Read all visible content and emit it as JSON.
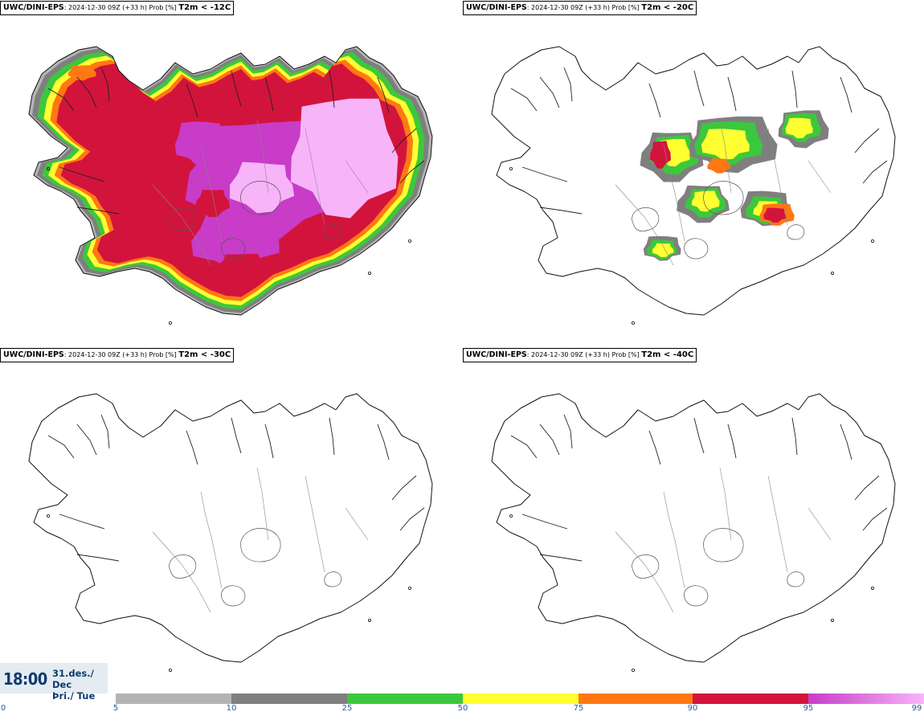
{
  "panels": [
    {
      "model": "UWC/DINI-EPS",
      "run": ": 2024-12-30 09Z (+33 h) Prob [%] ",
      "param": "T2m < -12C",
      "fill": "wide"
    },
    {
      "model": "UWC/DINI-EPS",
      "run": ": 2024-12-30 09Z (+33 h) Prob [%] ",
      "param": "T2m < -20C",
      "fill": "patchy"
    },
    {
      "model": "UWC/DINI-EPS",
      "run": ": 2024-12-30 09Z (+33 h) Prob [%] ",
      "param": "T2m < -30C",
      "fill": "none"
    },
    {
      "model": "UWC/DINI-EPS",
      "run": ": 2024-12-30 09Z (+33 h) Prob [%] ",
      "param": "T2m < -40C",
      "fill": "none"
    }
  ],
  "valid_time": {
    "time": "18:00",
    "date_line1": "31.des./ Dec",
    "date_line2": "Þri./ Tue"
  },
  "legend": {
    "ticks": [
      "0",
      "5",
      "10",
      "25",
      "50",
      "75",
      "90",
      "95",
      "99"
    ],
    "colors": {
      "5-10": "#b4b4b4",
      "10-25": "#7f7f7f",
      "25-50": "#3cc83c",
      "50-75": "#ffff32",
      "75-90": "#ff7814",
      "90-95": "#d2143c",
      "95-99": [
        "#c83cc8",
        "#f8b4f8"
      ]
    }
  }
}
